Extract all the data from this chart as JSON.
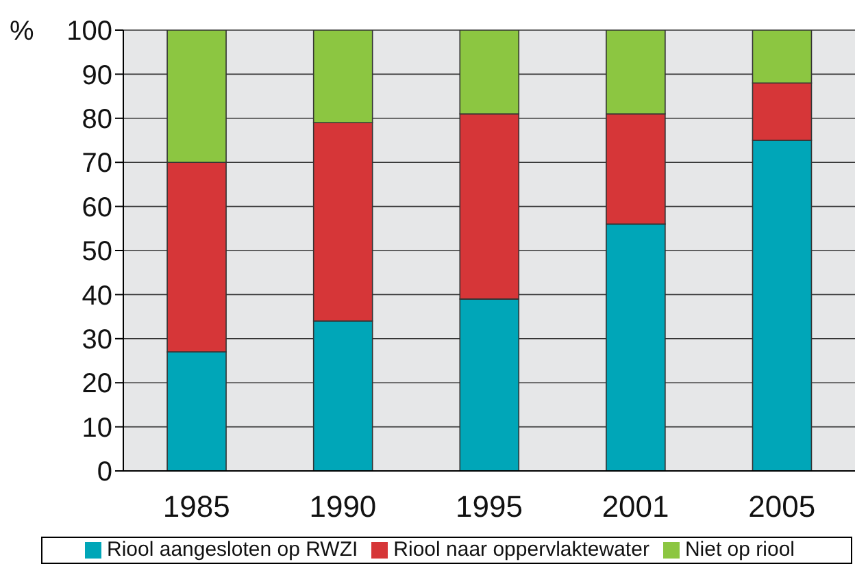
{
  "chart_data": {
    "type": "bar",
    "stacked": true,
    "ylabel": "%",
    "categories": [
      "1985",
      "1990",
      "1995",
      "2001",
      "2005"
    ],
    "series": [
      {
        "name": "Riool aangesloten op RWZI",
        "color": "#00a6b8",
        "values": [
          27,
          34,
          39,
          56,
          75
        ]
      },
      {
        "name": "Riool naar oppervlaktewater",
        "color": "#d63638",
        "values": [
          43,
          45,
          42,
          25,
          13
        ]
      },
      {
        "name": "Niet op riool",
        "color": "#8cc641",
        "values": [
          30,
          21,
          19,
          19,
          12
        ]
      }
    ],
    "ylim": [
      0,
      100
    ],
    "yticks": [
      0,
      10,
      20,
      30,
      40,
      50,
      60,
      70,
      80,
      90,
      100
    ],
    "grid": "y",
    "legend": "bottom"
  }
}
